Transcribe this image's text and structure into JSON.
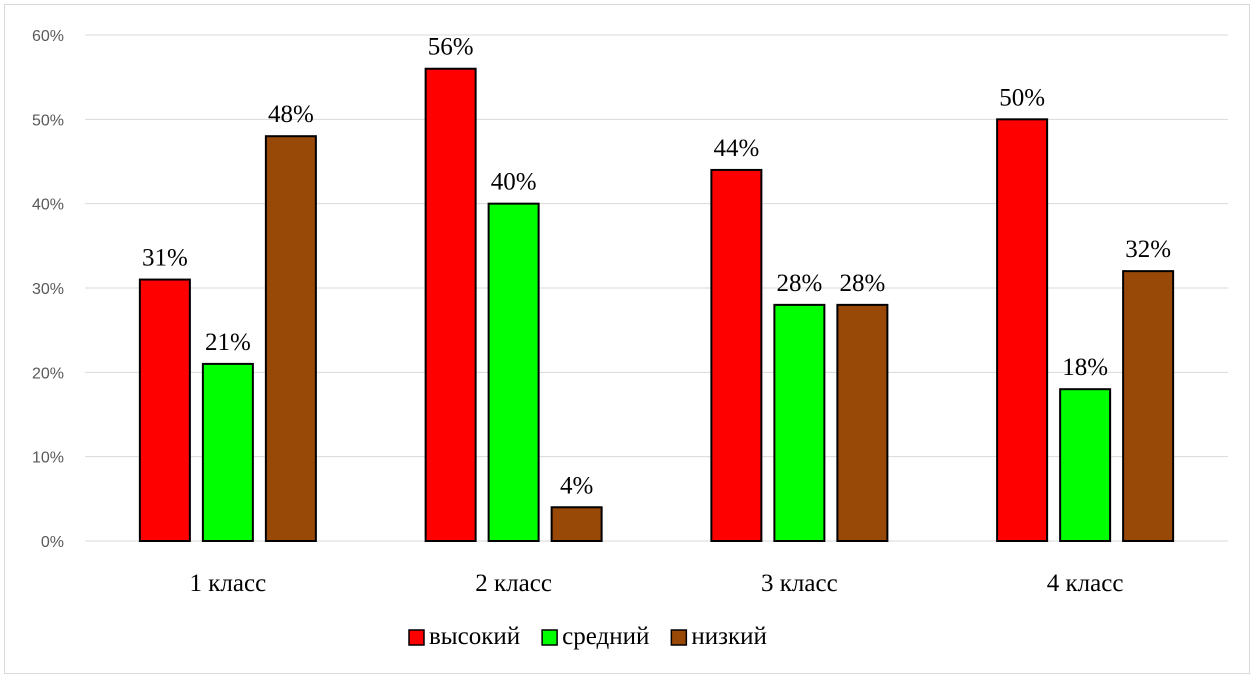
{
  "chart_data": {
    "type": "bar",
    "categories": [
      "1 класс",
      "2 класс",
      "3 класс",
      "4 класс"
    ],
    "series": [
      {
        "name": "высокий",
        "color": "#ff0000",
        "values": [
          31,
          56,
          44,
          50
        ],
        "labels": [
          "31%",
          "56%",
          "44%",
          "50%"
        ]
      },
      {
        "name": "средний",
        "color": "#00ff00",
        "values": [
          21,
          40,
          28,
          18
        ],
        "labels": [
          "21%",
          "40%",
          "28%",
          "18%"
        ]
      },
      {
        "name": "низкий",
        "color": "#984807",
        "values": [
          48,
          4,
          28,
          32
        ],
        "labels": [
          "48%",
          "4%",
          "28%",
          "32%"
        ]
      }
    ],
    "yticks": [
      "0%",
      "10%",
      "20%",
      "30%",
      "40%",
      "50%",
      "60%"
    ],
    "ylim": [
      0,
      60
    ],
    "grid": true,
    "legend": "bottom",
    "title": "",
    "xlabel": "",
    "ylabel": ""
  }
}
